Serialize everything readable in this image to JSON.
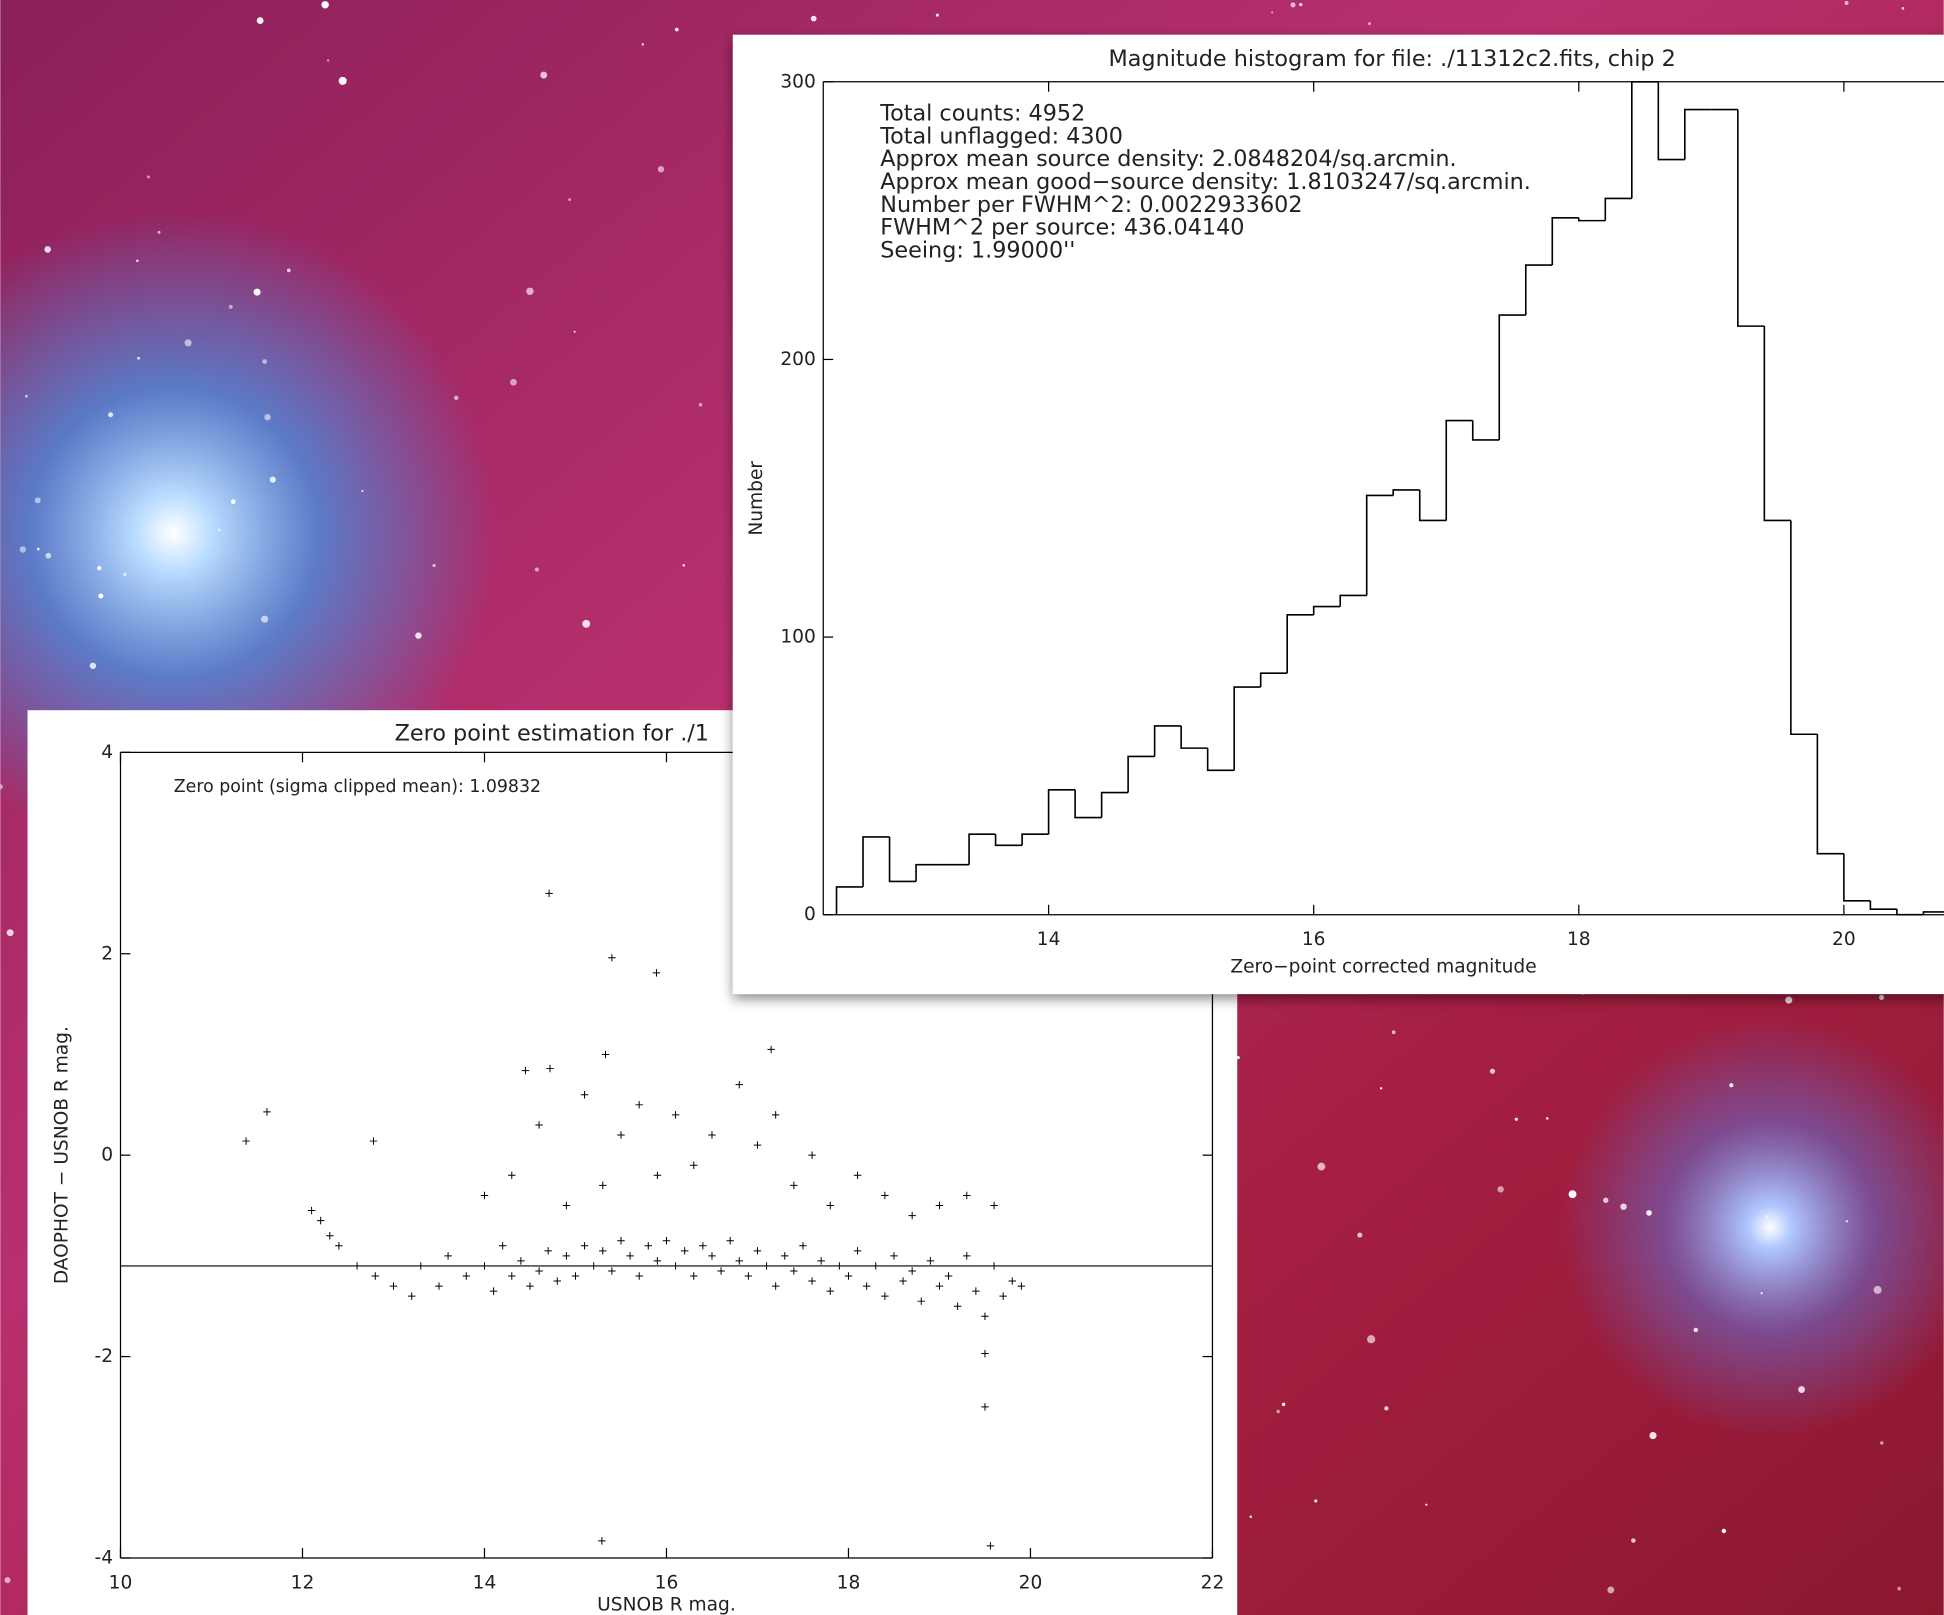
{
  "chart_data": [
    {
      "type": "histogram",
      "title": "Magnitude histogram for file: ./11312c2.fits, chip 2",
      "xlabel": "Zero−point corrected magnitude",
      "ylabel": "Number",
      "annotations": [
        "Total counts: 4952",
        "Total unflagged: 4300",
        "Approx mean source density: 2.0848204/sq.arcmin.",
        "Approx mean good−source density: 1.8103247/sq.arcmin.",
        "Number per FWHM^2: 0.0022933602",
        "FWHM^2 per source: 436.04140",
        "Seeing: 1.99000''"
      ],
      "bins": [
        12.4,
        12.6,
        12.8,
        13.0,
        13.2,
        13.4,
        13.6,
        13.8,
        14.0,
        14.2,
        14.4,
        14.6,
        14.8,
        15.0,
        15.2,
        15.4,
        15.6,
        15.8,
        16.0,
        16.2,
        16.4,
        16.6,
        16.8,
        17.0,
        17.2,
        17.4,
        17.6,
        17.8,
        18.0,
        18.2,
        18.4,
        18.6,
        18.8,
        19.0,
        19.2,
        19.4,
        19.6,
        19.8,
        20.0,
        20.2,
        20.4,
        20.6,
        20.8
      ],
      "values": [
        10,
        28,
        12,
        18,
        18,
        29,
        25,
        29,
        45,
        35,
        44,
        57,
        68,
        60,
        52,
        82,
        87,
        108,
        111,
        115,
        151,
        153,
        142,
        178,
        171,
        216,
        234,
        251,
        250,
        258,
        300,
        272,
        290,
        290,
        212,
        142,
        65,
        22,
        5,
        2,
        0,
        1
      ],
      "color": "#000000",
      "xlim": [
        12.3,
        20.8
      ],
      "ylim": [
        0,
        300
      ],
      "xticks": [
        14,
        16,
        18,
        20
      ],
      "yticks": [
        0,
        100,
        200,
        300
      ]
    },
    {
      "type": "scatter",
      "title": "Zero point estimation for ./1",
      "xlabel": "USNOB R mag.",
      "ylabel": "DAOPHOT − USNOB R mag.",
      "annotations": [
        "Zero point (sigma clipped mean): 1.09832"
      ],
      "hline": -1.1,
      "color": "#000000",
      "x": [
        14.71,
        15.4,
        15.89,
        11.61,
        11.38,
        12.78,
        19.5,
        19.5,
        15.29,
        19.56,
        17.15,
        15.33,
        14.45,
        14.72,
        12.1,
        12.2,
        12.3,
        12.4,
        12.6,
        12.8,
        13.0,
        13.2,
        13.3,
        13.5,
        13.6,
        13.8,
        14.0,
        14.1,
        14.2,
        14.3,
        14.4,
        14.5,
        14.6,
        14.7,
        14.8,
        14.9,
        15.0,
        15.1,
        15.2,
        15.3,
        15.4,
        15.5,
        15.6,
        15.7,
        15.8,
        15.9,
        16.0,
        16.1,
        16.2,
        16.3,
        16.4,
        16.5,
        16.6,
        16.7,
        16.8,
        16.9,
        17.0,
        17.1,
        17.2,
        17.3,
        17.4,
        17.5,
        17.6,
        17.7,
        17.8,
        17.9,
        18.0,
        18.1,
        18.2,
        18.3,
        18.4,
        18.5,
        18.6,
        18.7,
        18.8,
        18.9,
        19.0,
        19.1,
        19.2,
        19.3,
        19.4,
        19.5,
        19.6,
        19.7,
        19.8,
        19.9,
        14.0,
        14.3,
        14.6,
        14.9,
        15.1,
        15.3,
        15.5,
        15.7,
        15.9,
        16.1,
        16.3,
        16.5,
        16.8,
        17.0,
        17.2,
        17.4,
        17.6,
        17.8,
        18.1,
        18.4,
        18.7,
        19.0,
        19.3,
        19.6
      ],
      "values": [
        2.6,
        1.96,
        1.81,
        0.43,
        0.14,
        0.14,
        -1.97,
        -2.5,
        -3.83,
        -3.88,
        1.05,
        1.0,
        0.84,
        0.86,
        -0.55,
        -0.65,
        -0.8,
        -0.9,
        -1.1,
        -1.2,
        -1.3,
        -1.4,
        -1.1,
        -1.3,
        -1.0,
        -1.2,
        -1.1,
        -1.35,
        -0.9,
        -1.2,
        -1.05,
        -1.3,
        -1.15,
        -0.95,
        -1.25,
        -1.0,
        -1.2,
        -0.9,
        -1.1,
        -0.95,
        -1.15,
        -0.85,
        -1.0,
        -1.2,
        -0.9,
        -1.05,
        -0.85,
        -1.1,
        -0.95,
        -1.2,
        -0.9,
        -1.0,
        -1.15,
        -0.85,
        -1.05,
        -1.2,
        -0.95,
        -1.1,
        -1.3,
        -1.0,
        -1.15,
        -0.9,
        -1.25,
        -1.05,
        -1.35,
        -1.1,
        -1.2,
        -0.95,
        -1.3,
        -1.1,
        -1.4,
        -1.0,
        -1.25,
        -1.15,
        -1.45,
        -1.05,
        -1.3,
        -1.2,
        -1.5,
        -1.0,
        -1.35,
        -1.6,
        -1.1,
        -1.4,
        -1.25,
        -1.3,
        -0.4,
        -0.2,
        0.3,
        -0.5,
        0.6,
        -0.3,
        0.2,
        0.5,
        -0.2,
        0.4,
        -0.1,
        0.2,
        0.7,
        0.1,
        0.4,
        -0.3,
        0.0,
        -0.5,
        -0.2,
        -0.4,
        -0.6,
        -0.5,
        -0.4,
        -0.5
      ],
      "xlim": [
        10,
        22
      ],
      "ylim": [
        -4,
        4
      ],
      "xticks": [
        10,
        12,
        14,
        16,
        18,
        20,
        22
      ],
      "yticks": [
        -4,
        -2,
        0,
        2,
        4
      ]
    }
  ]
}
